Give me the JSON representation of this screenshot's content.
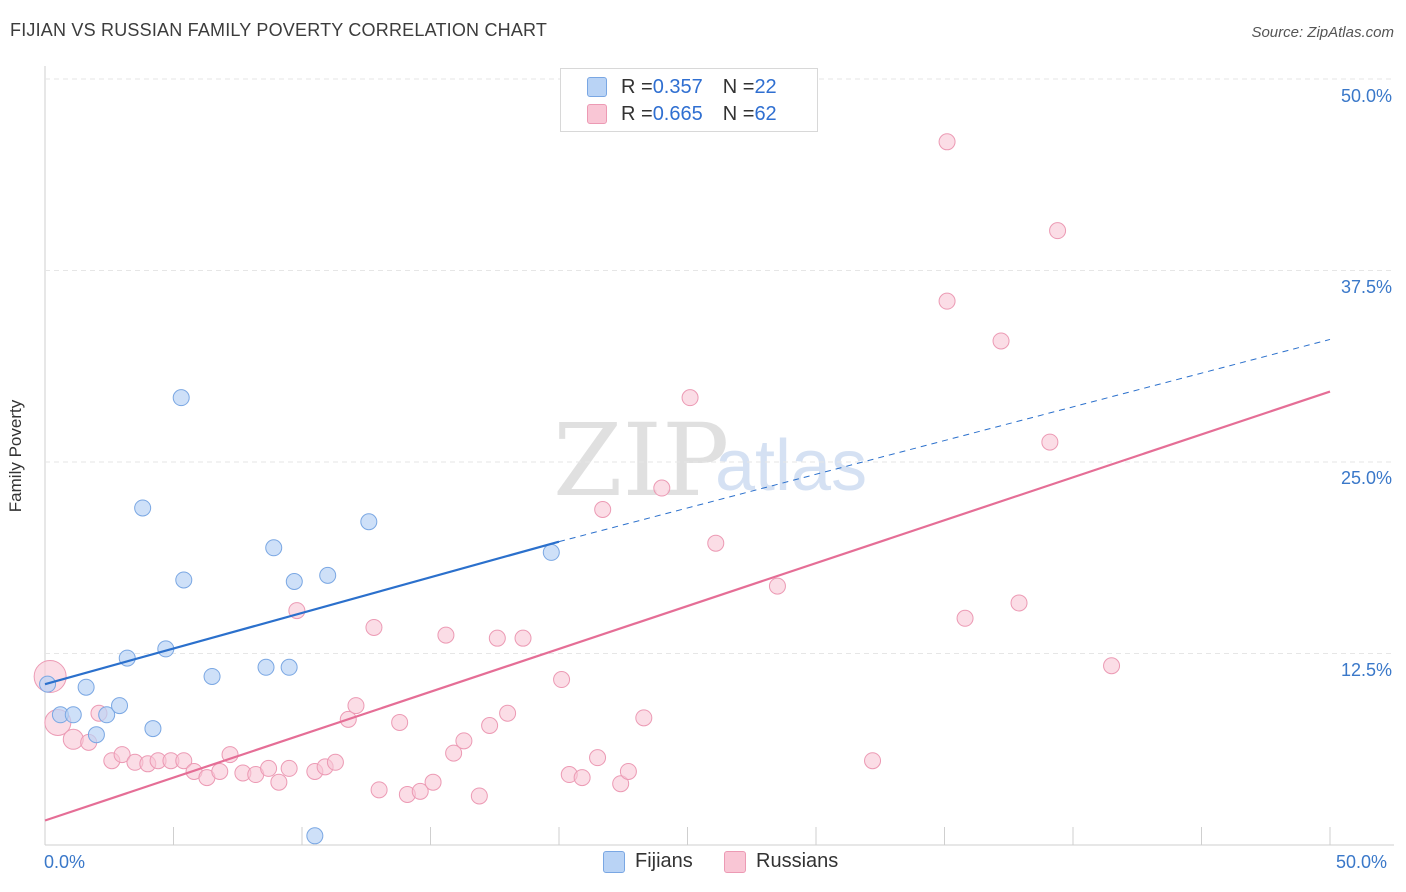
{
  "header": {
    "title": "FIJIAN VS RUSSIAN FAMILY POVERTY CORRELATION CHART",
    "source": "Source: ZipAtlas.com"
  },
  "watermark": {
    "zip": "ZIP",
    "atlas": "atlas"
  },
  "legend": {
    "fijians": {
      "r_label": "R = ",
      "r_value": "0.357",
      "n_label": "N = ",
      "n_value": "22"
    },
    "russians": {
      "r_label": "R = ",
      "r_value": "0.665",
      "n_label": "N = ",
      "n_value": "62"
    }
  },
  "colors": {
    "fijians_fill": "#b9d3f5",
    "fijians_stroke": "#7aa7e3",
    "fijians_line": "#2b70cc",
    "russians_fill": "#f9c6d5",
    "russians_stroke": "#ec9ab4",
    "russians_line": "#e56e96",
    "grid": "#e6e6e6",
    "axis_text": "#3a78c9"
  },
  "chart_data": {
    "type": "scatter",
    "title": "FIJIAN VS RUSSIAN FAMILY POVERTY CORRELATION CHART",
    "xlabel": "",
    "ylabel": "Family Poverty",
    "xlim": [
      0,
      50
    ],
    "ylim": [
      0,
      50
    ],
    "x_tick_labels": [
      "0.0%",
      "50.0%"
    ],
    "y_tick_labels": [
      "12.5%",
      "25.0%",
      "37.5%",
      "50.0%"
    ],
    "y_ticks": [
      12.5,
      25.0,
      37.5,
      50.0
    ],
    "series": [
      {
        "name": "Fijians",
        "r": 0.357,
        "n": 22,
        "trend": {
          "x1": 0,
          "y1": 10.5,
          "x2": 20,
          "y2": 19.8,
          "dash_to_x": 50,
          "dash_to_y": 33.0
        },
        "points": [
          [
            0.1,
            10.5
          ],
          [
            0.6,
            8.5
          ],
          [
            1.1,
            8.5
          ],
          [
            1.6,
            10.3
          ],
          [
            2.0,
            7.2
          ],
          [
            2.4,
            8.5
          ],
          [
            2.9,
            9.1
          ],
          [
            3.2,
            12.2
          ],
          [
            3.8,
            22.0
          ],
          [
            4.2,
            7.6
          ],
          [
            4.7,
            12.8
          ],
          [
            5.3,
            29.2
          ],
          [
            5.4,
            17.3
          ],
          [
            6.5,
            11.0
          ],
          [
            8.6,
            11.6
          ],
          [
            8.9,
            19.4
          ],
          [
            9.5,
            11.6
          ],
          [
            9.7,
            17.2
          ],
          [
            10.5,
            0.6
          ],
          [
            11.0,
            17.6
          ],
          [
            12.6,
            21.1
          ],
          [
            19.7,
            19.1
          ]
        ]
      },
      {
        "name": "Russians",
        "r": 0.665,
        "n": 62,
        "trend": {
          "x1": 0,
          "y1": 1.6,
          "x2": 50,
          "y2": 29.6
        },
        "points": [
          [
            0.2,
            11.0
          ],
          [
            0.5,
            8.0
          ],
          [
            1.1,
            6.9
          ],
          [
            1.7,
            6.7
          ],
          [
            2.1,
            8.6
          ],
          [
            2.6,
            5.5
          ],
          [
            3.0,
            5.9
          ],
          [
            3.5,
            5.4
          ],
          [
            4.0,
            5.3
          ],
          [
            4.4,
            5.5
          ],
          [
            4.9,
            5.5
          ],
          [
            5.4,
            5.5
          ],
          [
            5.8,
            4.8
          ],
          [
            6.3,
            4.4
          ],
          [
            6.8,
            4.8
          ],
          [
            7.2,
            5.9
          ],
          [
            7.7,
            4.7
          ],
          [
            8.2,
            4.6
          ],
          [
            8.7,
            5.0
          ],
          [
            9.1,
            4.1
          ],
          [
            9.5,
            5.0
          ],
          [
            9.8,
            15.3
          ],
          [
            10.5,
            4.8
          ],
          [
            10.9,
            5.1
          ],
          [
            11.3,
            5.4
          ],
          [
            11.8,
            8.2
          ],
          [
            12.1,
            9.1
          ],
          [
            12.8,
            14.2
          ],
          [
            13.0,
            3.6
          ],
          [
            13.8,
            8.0
          ],
          [
            14.1,
            3.3
          ],
          [
            14.6,
            3.5
          ],
          [
            15.1,
            4.1
          ],
          [
            15.6,
            13.7
          ],
          [
            15.9,
            6.0
          ],
          [
            16.3,
            6.8
          ],
          [
            16.9,
            3.2
          ],
          [
            17.3,
            7.8
          ],
          [
            17.6,
            13.5
          ],
          [
            18.0,
            8.6
          ],
          [
            18.6,
            13.5
          ],
          [
            20.1,
            10.8
          ],
          [
            20.4,
            4.6
          ],
          [
            20.9,
            4.4
          ],
          [
            21.5,
            5.7
          ],
          [
            21.7,
            21.9
          ],
          [
            22.4,
            4.0
          ],
          [
            22.7,
            4.8
          ],
          [
            23.3,
            8.3
          ],
          [
            24.0,
            23.3
          ],
          [
            25.1,
            29.2
          ],
          [
            26.1,
            19.7
          ],
          [
            28.5,
            16.9
          ],
          [
            32.2,
            5.5
          ],
          [
            35.1,
            45.9
          ],
          [
            35.1,
            35.5
          ],
          [
            35.8,
            14.8
          ],
          [
            37.2,
            32.9
          ],
          [
            37.9,
            15.8
          ],
          [
            39.1,
            26.3
          ],
          [
            39.4,
            40.1
          ],
          [
            41.5,
            11.7
          ]
        ]
      }
    ]
  },
  "bottom_legend": {
    "fijians": "Fijians",
    "russians": "Russians"
  }
}
